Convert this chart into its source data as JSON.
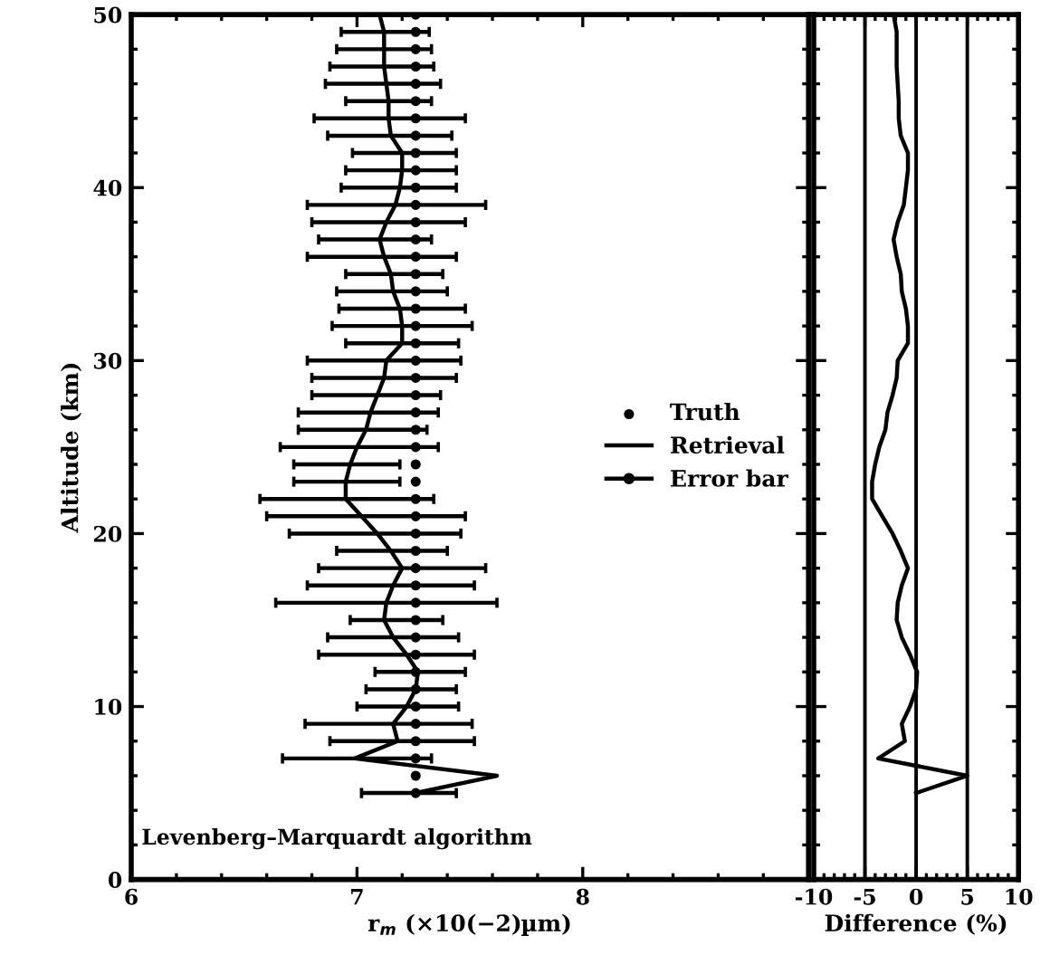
{
  "chart_data": [
    {
      "type": "line",
      "xlabel": "r$_{m}$ (×10(−2)µm)",
      "ylabel": "Altitude (km)",
      "xlim": [
        6,
        9
      ],
      "xticks": [
        6,
        7,
        8
      ],
      "ylim": [
        0,
        50
      ],
      "yticks": [
        0,
        10,
        20,
        30,
        40,
        50
      ],
      "legend": "right",
      "grid": false,
      "annotations": [
        "Levenberg–Marquardt algorithm",
        "Error bar"
      ],
      "series": [
        {
          "name": "Truth",
          "type": "scatter",
          "marker": "circle",
          "color": "#000000",
          "x": [
            7.26,
            7.26,
            7.26,
            7.26,
            7.26,
            7.26,
            7.26,
            7.26,
            7.26,
            7.26,
            7.26,
            7.26,
            7.26,
            7.26,
            7.26,
            7.26,
            7.26,
            7.26,
            7.26,
            7.26,
            7.26,
            7.26,
            7.26,
            7.26,
            7.26,
            7.26,
            7.26,
            7.26,
            7.26,
            7.26,
            7.26,
            7.26,
            7.26,
            7.26,
            7.26,
            7.26,
            7.26,
            7.26,
            7.26,
            7.26,
            7.26,
            7.26,
            7.26,
            7.26,
            7.26,
            7.26
          ],
          "values": [
            50,
            49,
            48,
            47,
            46,
            45,
            44,
            43,
            42,
            41,
            40,
            39,
            38,
            37,
            36,
            35,
            34,
            33,
            32,
            31,
            30,
            29,
            28,
            27,
            26,
            25,
            24,
            23,
            22,
            21,
            20,
            19,
            18,
            17,
            16,
            15,
            14,
            13,
            12,
            11,
            10,
            9,
            8,
            7,
            6,
            5
          ]
        },
        {
          "name": "Retrieval",
          "type": "line",
          "marker": "none",
          "color": "#000000",
          "x": [
            7.1,
            7.12,
            7.12,
            7.12,
            7.13,
            7.14,
            7.14,
            7.15,
            7.2,
            7.2,
            7.19,
            7.17,
            7.13,
            7.1,
            7.12,
            7.15,
            7.16,
            7.19,
            7.2,
            7.2,
            7.13,
            7.12,
            7.09,
            7.06,
            7.04,
            7.0,
            6.97,
            6.95,
            6.95,
            7.02,
            7.09,
            7.15,
            7.2,
            7.16,
            7.13,
            7.12,
            7.16,
            7.22,
            7.27,
            7.26,
            7.22,
            7.16,
            7.18,
            6.99,
            7.62,
            7.26
          ],
          "values": [
            50,
            49,
            48,
            47,
            46,
            45,
            44,
            43,
            42,
            41,
            40,
            39,
            38,
            37,
            36,
            35,
            34,
            33,
            32,
            31,
            30,
            29,
            28,
            27,
            26,
            25,
            24,
            23,
            22,
            21,
            20,
            19,
            18,
            17,
            16,
            15,
            14,
            13,
            12,
            11,
            10,
            9,
            8,
            7,
            6,
            5
          ],
          "xerrors": [
            null,
            [
              6.93,
              7.32
            ],
            [
              6.91,
              7.33
            ],
            [
              6.88,
              7.34
            ],
            [
              6.86,
              7.37
            ],
            [
              6.95,
              7.33
            ],
            [
              6.81,
              7.48
            ],
            [
              6.87,
              7.42
            ],
            [
              6.98,
              7.44
            ],
            [
              6.95,
              7.44
            ],
            [
              6.93,
              7.44
            ],
            [
              6.78,
              7.57
            ],
            [
              6.8,
              7.48
            ],
            [
              6.83,
              7.33
            ],
            [
              6.78,
              7.44
            ],
            [
              6.95,
              7.38
            ],
            [
              6.91,
              7.4
            ],
            [
              6.92,
              7.48
            ],
            [
              6.89,
              7.51
            ],
            [
              6.95,
              7.45
            ],
            [
              6.78,
              7.46
            ],
            [
              6.8,
              7.44
            ],
            [
              6.8,
              7.37
            ],
            [
              6.74,
              7.36
            ],
            [
              6.74,
              7.31
            ],
            [
              6.66,
              7.36
            ],
            [
              6.72,
              7.19
            ],
            [
              6.72,
              7.19
            ],
            [
              6.57,
              7.34
            ],
            [
              6.6,
              7.48
            ],
            [
              6.7,
              7.46
            ],
            [
              6.91,
              7.4
            ],
            [
              6.83,
              7.57
            ],
            [
              6.78,
              7.52
            ],
            [
              6.64,
              7.62
            ],
            [
              6.97,
              7.38
            ],
            [
              6.87,
              7.45
            ],
            [
              6.83,
              7.52
            ],
            [
              7.08,
              7.48
            ],
            [
              7.04,
              7.44
            ],
            [
              7.0,
              7.45
            ],
            [
              6.77,
              7.51
            ],
            [
              6.88,
              7.52
            ],
            [
              6.67,
              7.33
            ],
            null,
            [
              7.02,
              7.44
            ]
          ]
        }
      ]
    },
    {
      "type": "line",
      "xlabel": "Difference (%)",
      "xlim": [
        -10,
        10
      ],
      "xticks": [
        -10,
        -5,
        0,
        5,
        10
      ],
      "ylim": [
        0,
        50
      ],
      "yticks": [
        0,
        10,
        20,
        30,
        40,
        50
      ],
      "tick_labels": "x",
      "grid": false,
      "ref_lines": [
        {
          "axis": "x",
          "value": -5,
          "color": "#000000"
        },
        {
          "axis": "x",
          "value": 0,
          "color": "#000000"
        },
        {
          "axis": "x",
          "value": 5,
          "color": "#000000"
        }
      ],
      "series": [
        {
          "color": "#000000",
          "x": [
            -2.2,
            -1.9,
            -1.9,
            -1.9,
            -1.8,
            -1.7,
            -1.7,
            -1.5,
            -0.8,
            -0.8,
            -1.0,
            -1.2,
            -1.8,
            -2.2,
            -1.9,
            -1.5,
            -1.4,
            -1.0,
            -0.8,
            -0.8,
            -1.8,
            -1.9,
            -2.3,
            -2.8,
            -3.0,
            -3.6,
            -4.0,
            -4.3,
            -4.3,
            -3.3,
            -2.3,
            -1.5,
            -0.8,
            -1.4,
            -1.8,
            -1.9,
            -1.4,
            -0.6,
            0.1,
            0,
            -0.6,
            -1.4,
            -1.1,
            -3.7,
            5.0,
            0
          ],
          "values": [
            50,
            49,
            48,
            47,
            46,
            45,
            44,
            43,
            42,
            41,
            40,
            39,
            38,
            37,
            36,
            35,
            34,
            33,
            32,
            31,
            30,
            29,
            28,
            27,
            26,
            25,
            24,
            23,
            22,
            21,
            20,
            19,
            18,
            17,
            16,
            15,
            14,
            13,
            12,
            11,
            10,
            9,
            8,
            7,
            6,
            5
          ]
        }
      ]
    }
  ]
}
